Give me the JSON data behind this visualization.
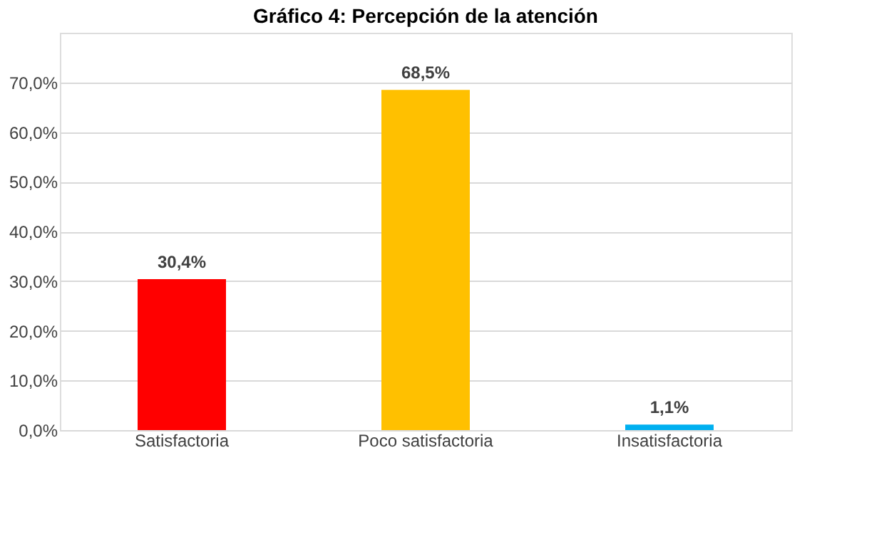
{
  "chart_data": {
    "type": "bar",
    "title": "Gráfico 4: Percepción de la atención",
    "categories": [
      "Satisfactoria",
      "Poco satisfactoria",
      "Insatisfactoria"
    ],
    "values": [
      30.4,
      68.5,
      1.1
    ],
    "colors": [
      "#ff0000",
      "#ffc000",
      "#00b0f0"
    ],
    "value_labels": [
      "30,4%",
      "68,5%",
      "1,1%"
    ],
    "ylim": [
      0,
      80
    ],
    "yticks": [
      {
        "value": 0,
        "label": "0,0%"
      },
      {
        "value": 10,
        "label": "10,0%"
      },
      {
        "value": 20,
        "label": "20,0%"
      },
      {
        "value": 30,
        "label": "30,0%"
      },
      {
        "value": 40,
        "label": "40,0%"
      },
      {
        "value": 50,
        "label": "50,0%"
      },
      {
        "value": 60,
        "label": "60,0%"
      },
      {
        "value": 70,
        "label": "70,0%"
      }
    ],
    "grid": "y"
  }
}
